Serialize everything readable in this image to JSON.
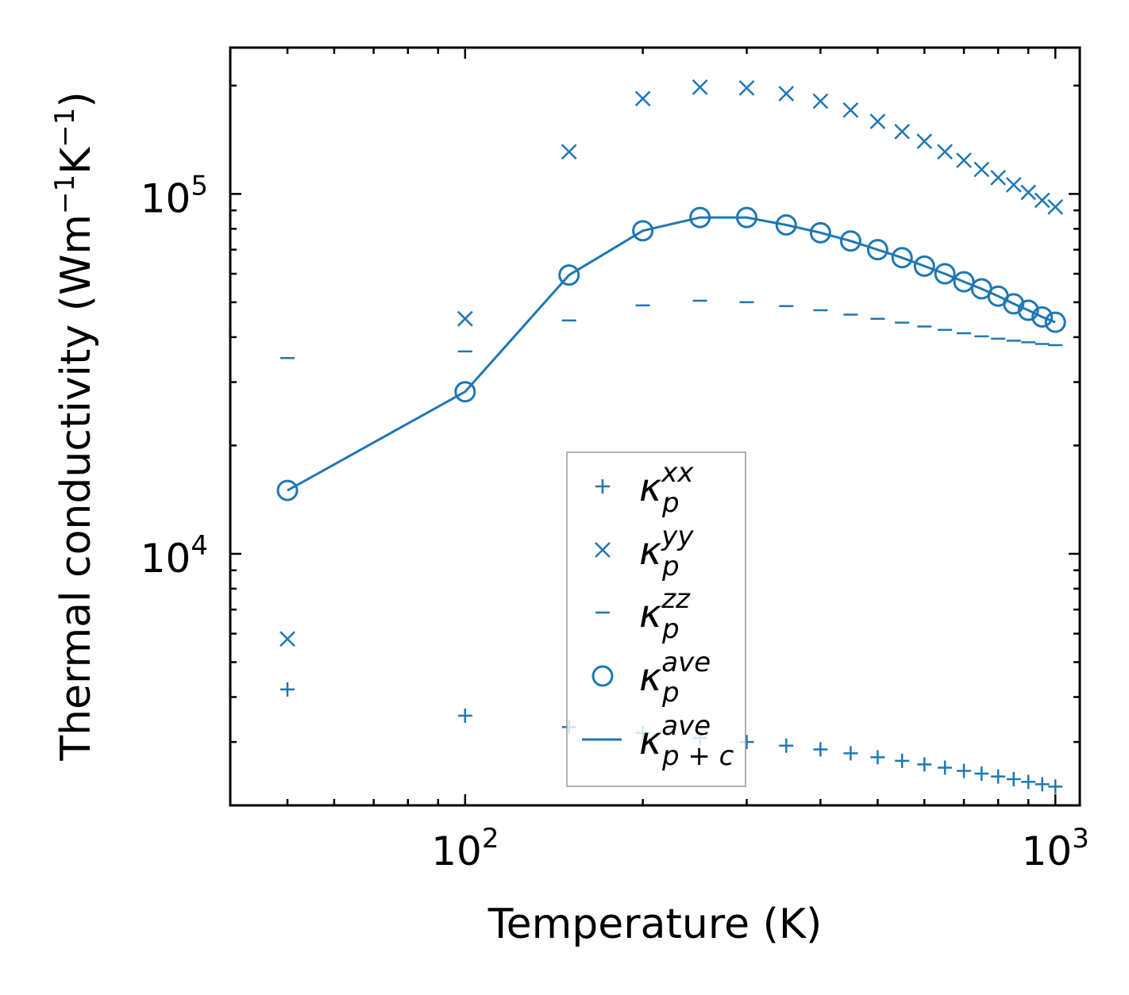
{
  "chart_data": {
    "type": "scatter",
    "xlabel": "Temperature (K)",
    "ylabel_main": "Thermal conductivity (Wm",
    "ylabel_exp1": "−1",
    "ylabel_mid": "K",
    "ylabel_exp2": "−1",
    "ylabel_end": ")",
    "xscale": "log",
    "yscale": "log",
    "xlim": [
      40,
      1100
    ],
    "ylim": [
      2000,
      255000
    ],
    "x_ticks": [
      {
        "value": 100,
        "base": "10",
        "exp": "2"
      },
      {
        "value": 1000,
        "base": "10",
        "exp": "3"
      }
    ],
    "y_ticks": [
      {
        "value": 10000,
        "base": "10",
        "exp": "4"
      },
      {
        "value": 100000,
        "base": "10",
        "exp": "5"
      }
    ],
    "x": [
      50,
      100,
      150,
      200,
      250,
      300,
      350,
      400,
      450,
      500,
      550,
      600,
      650,
      700,
      750,
      800,
      850,
      900,
      950,
      1000
    ],
    "series": [
      {
        "name": "kxx",
        "marker": "plus",
        "values": [
          4200,
          3550,
          3300,
          3180,
          3080,
          3000,
          2930,
          2860,
          2790,
          2720,
          2660,
          2600,
          2545,
          2495,
          2450,
          2405,
          2365,
          2325,
          2290,
          2255
        ]
      },
      {
        "name": "kyy",
        "marker": "x",
        "values": [
          5800,
          45000,
          131000,
          184000,
          198000,
          197000,
          190000,
          181000,
          171000,
          159000,
          149000,
          140000,
          131000,
          124000,
          117000,
          111000,
          106000,
          101000,
          96000,
          92000
        ]
      },
      {
        "name": "kzz",
        "marker": "hline",
        "values": [
          35000,
          36500,
          44500,
          49000,
          50500,
          50000,
          48800,
          47500,
          46200,
          45000,
          43900,
          42800,
          41900,
          41000,
          40200,
          39600,
          39100,
          38700,
          38300,
          38000
        ]
      },
      {
        "name": "kave",
        "marker": "circle",
        "values": [
          15000,
          28200,
          59500,
          79000,
          86000,
          86000,
          82000,
          78000,
          74000,
          70000,
          66500,
          63000,
          60000,
          57000,
          54500,
          52000,
          49500,
          47500,
          45500,
          44000
        ]
      },
      {
        "name": "kave_pc",
        "marker": "line",
        "values": [
          15000,
          28200,
          59500,
          79000,
          86000,
          86000,
          82000,
          78000,
          74000,
          70000,
          66500,
          63000,
          60000,
          57000,
          54500,
          52000,
          49500,
          47500,
          45500,
          44000
        ]
      }
    ],
    "legend": {
      "placement": "lower-center",
      "entries": [
        {
          "symbol": "κ",
          "sub": "p",
          "sup": "xx"
        },
        {
          "symbol": "κ",
          "sub": "p",
          "sup": "yy"
        },
        {
          "symbol": "κ",
          "sub": "p",
          "sup": "zz"
        },
        {
          "symbol": "κ",
          "sub": "p",
          "sup": "ave"
        },
        {
          "symbol": "κ",
          "sub": "p + c",
          "sup": "ave"
        }
      ]
    },
    "color": "#1f77b4"
  }
}
